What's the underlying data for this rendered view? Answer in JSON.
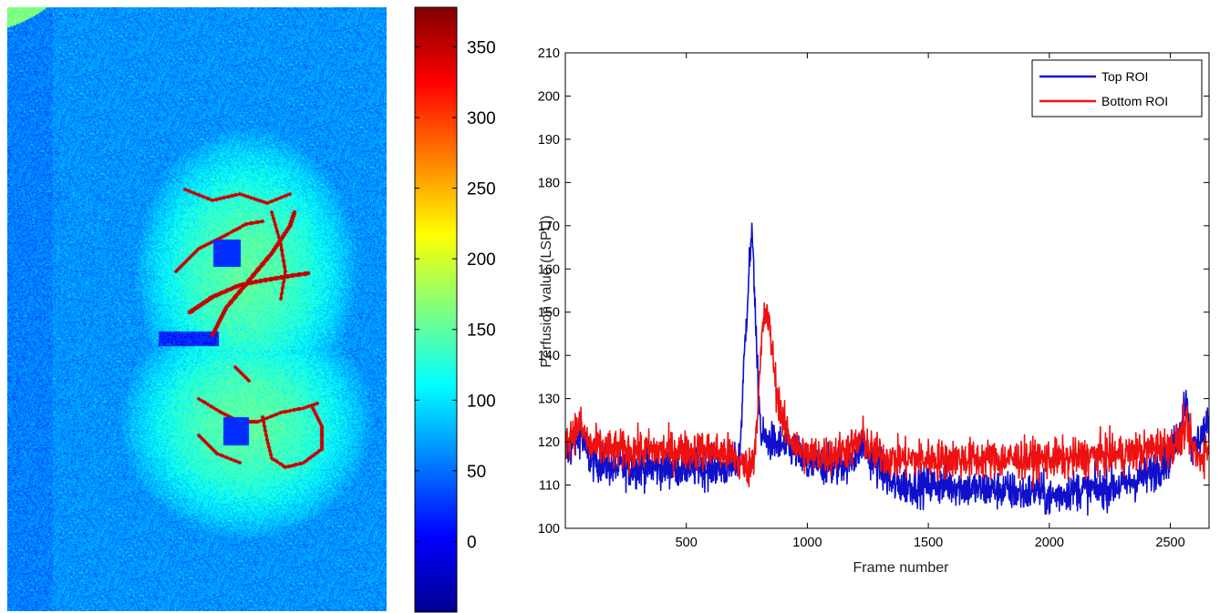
{
  "image_panel": {
    "colormap": "jet",
    "roi_markers": [
      "Top ROI",
      "Bottom ROI"
    ],
    "roi_marker_color": "#1a1ad8"
  },
  "colorbar": {
    "min": -50,
    "max": 378,
    "ticks": [
      0,
      50,
      100,
      150,
      200,
      250,
      300,
      350
    ],
    "tick_labels": [
      "0",
      "50",
      "100",
      "150",
      "200",
      "250",
      "300",
      "350"
    ]
  },
  "chart_data": {
    "type": "line",
    "xlabel": "Frame number",
    "ylabel": "Perfusion value (LSPU)",
    "xlim": [
      0,
      2660
    ],
    "ylim": [
      100,
      210
    ],
    "xticks": [
      500,
      1000,
      1500,
      2000,
      2500
    ],
    "yticks": [
      100,
      110,
      120,
      130,
      140,
      150,
      160,
      170,
      180,
      190,
      200,
      210
    ],
    "legend_position": "top-right",
    "noise_amplitude_approx": 3,
    "series": [
      {
        "name": "Top ROI",
        "color": "#1010cc",
        "trend_x": [
          0,
          30,
          60,
          100,
          200,
          300,
          400,
          500,
          600,
          690,
          720,
          740,
          760,
          775,
          790,
          810,
          850,
          900,
          950,
          1000,
          1050,
          1100,
          1150,
          1200,
          1230,
          1260,
          1300,
          1350,
          1400,
          1500,
          1600,
          1700,
          1800,
          1900,
          1950,
          2000,
          2050,
          2100,
          2200,
          2300,
          2400,
          2450,
          2500,
          2540,
          2555,
          2570,
          2590,
          2620,
          2660
        ],
        "trend_y": [
          117,
          119,
          122,
          116,
          114,
          114,
          114,
          114,
          114,
          114,
          116,
          140,
          161,
          168,
          140,
          121,
          120,
          119,
          118,
          114,
          115,
          114,
          115,
          117,
          120,
          116,
          114,
          110,
          110,
          110,
          110,
          109,
          109,
          108,
          109,
          107,
          108,
          109,
          109,
          110,
          112,
          114,
          117,
          122,
          130,
          128,
          117,
          121,
          124
        ]
      },
      {
        "name": "Bottom ROI",
        "color": "#ee1111",
        "trend_x": [
          0,
          30,
          60,
          100,
          200,
          300,
          400,
          500,
          600,
          690,
          720,
          760,
          780,
          800,
          815,
          830,
          850,
          870,
          900,
          950,
          1000,
          1050,
          1100,
          1150,
          1200,
          1230,
          1260,
          1300,
          1350,
          1400,
          1500,
          1600,
          1700,
          1800,
          1900,
          1950,
          2000,
          2050,
          2100,
          2200,
          2300,
          2400,
          2450,
          2500,
          2540,
          2560,
          2580,
          2600,
          2620,
          2660
        ],
        "trend_y": [
          120,
          122,
          124,
          119,
          118,
          118,
          118,
          118,
          118,
          117,
          115,
          114,
          117,
          132,
          146,
          150,
          144,
          133,
          124,
          119,
          117,
          117,
          117,
          118,
          119,
          121,
          118,
          117,
          116,
          116,
          116,
          116,
          116,
          116,
          116,
          116,
          116,
          116,
          116,
          117,
          117,
          118,
          119,
          119,
          120,
          124,
          121,
          118,
          116,
          119
        ]
      }
    ]
  }
}
